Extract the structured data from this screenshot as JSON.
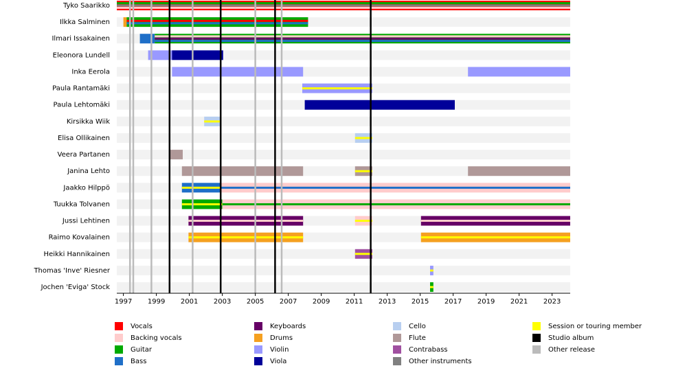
{
  "chart_data": {
    "type": "timeline",
    "xlim": [
      1996.6,
      2024.1
    ],
    "xticks": [
      1997,
      1999,
      2001,
      2003,
      2005,
      2007,
      2009,
      2011,
      2013,
      2015,
      2017,
      2019,
      2021,
      2023
    ],
    "legend": [
      {
        "name": "Vocals",
        "color": "#ff0000"
      },
      {
        "name": "Backing vocals",
        "color": "#ffcccc"
      },
      {
        "name": "Guitar",
        "color": "#00aa00"
      },
      {
        "name": "Bass",
        "color": "#1f6fc8"
      },
      {
        "name": "Keyboards",
        "color": "#660066"
      },
      {
        "name": "Drums",
        "color": "#f5a020"
      },
      {
        "name": "Violin",
        "color": "#9999ff"
      },
      {
        "name": "Viola",
        "color": "#000099"
      },
      {
        "name": "Cello",
        "color": "#b8cff0"
      },
      {
        "name": "Flute",
        "color": "#b09898"
      },
      {
        "name": "Contrabass",
        "color": "#a050a0"
      },
      {
        "name": "Other instruments",
        "color": "#808080"
      },
      {
        "name": "Session or touring member",
        "color": "#ffff00"
      },
      {
        "name": "Studio album",
        "color": "#000000"
      },
      {
        "name": "Other release",
        "color": "#bbbbbb"
      }
    ],
    "studio_albums": [
      1999.8,
      2002.9,
      2006.2,
      2012.0
    ],
    "other_releases": [
      1997.4,
      1997.6,
      1998.7,
      2001.2,
      2005.0,
      2006.6
    ],
    "members": [
      {
        "name": "Tyko Saarikko",
        "segments": [
          {
            "start": 1996.6,
            "end": 2024.1,
            "roles": [
              "Vocals",
              "Guitar",
              "Other instruments",
              "Backing vocals"
            ]
          }
        ]
      },
      {
        "name": "Ilkka Salminen",
        "segments": [
          {
            "start": 1997.0,
            "end": 1997.2,
            "roles": [
              "Drums"
            ]
          },
          {
            "start": 1997.2,
            "end": 2008.2,
            "roles": [
              "Guitar",
              "Vocals",
              "Bass"
            ]
          }
        ]
      },
      {
        "name": "Ilmari Issakainen",
        "segments": [
          {
            "start": 1998.0,
            "end": 1998.9,
            "roles": [
              "Bass"
            ]
          },
          {
            "start": 1998.9,
            "end": 2024.1,
            "roles": [
              "Guitar",
              "Backing vocals",
              "Keyboards",
              "Bass"
            ]
          }
        ]
      },
      {
        "name": "Eleonora Lundell",
        "segments": [
          {
            "start": 1998.5,
            "end": 1999.95,
            "roles": [
              "Violin"
            ]
          },
          {
            "start": 1999.95,
            "end": 2003.05,
            "roles": [
              "Viola"
            ]
          }
        ]
      },
      {
        "name": "Inka Eerola",
        "segments": [
          {
            "start": 1999.95,
            "end": 2007.9,
            "roles": [
              "Violin"
            ]
          },
          {
            "start": 2017.9,
            "end": 2024.1,
            "roles": [
              "Violin"
            ]
          }
        ]
      },
      {
        "name": "Paula Rantamäki",
        "segments": [
          {
            "start": 2007.85,
            "end": 2012.1,
            "roles": [
              "Violin",
              "Session or touring member"
            ]
          }
        ]
      },
      {
        "name": "Paula Lehtomäki",
        "segments": [
          {
            "start": 2008.0,
            "end": 2017.1,
            "roles": [
              "Viola"
            ]
          }
        ]
      },
      {
        "name": "Kirsikka Wiik",
        "segments": [
          {
            "start": 2001.9,
            "end": 2002.9,
            "roles": [
              "Cello",
              "Session or touring member"
            ]
          }
        ]
      },
      {
        "name": "Elisa Ollikainen",
        "segments": [
          {
            "start": 2011.05,
            "end": 2012.1,
            "roles": [
              "Cello",
              "Session or touring member"
            ]
          }
        ]
      },
      {
        "name": "Veera Partanen",
        "segments": [
          {
            "start": 1999.8,
            "end": 2000.6,
            "roles": [
              "Flute"
            ]
          }
        ]
      },
      {
        "name": "Janina Lehto",
        "segments": [
          {
            "start": 2000.55,
            "end": 2007.9,
            "roles": [
              "Flute"
            ]
          },
          {
            "start": 2011.05,
            "end": 2012.1,
            "roles": [
              "Flute",
              "Session or touring member"
            ]
          },
          {
            "start": 2017.9,
            "end": 2024.1,
            "roles": [
              "Flute"
            ]
          }
        ]
      },
      {
        "name": "Jaakko Hilppö",
        "segments": [
          {
            "start": 2000.55,
            "end": 2002.9,
            "roles": [
              "Bass",
              "Session or touring member"
            ]
          },
          {
            "start": 2002.9,
            "end": 2024.1,
            "roles": [
              "Backing vocals",
              "Bass"
            ]
          }
        ]
      },
      {
        "name": "Tuukka Tolvanen",
        "segments": [
          {
            "start": 2000.55,
            "end": 2003.0,
            "roles": [
              "Guitar",
              "Session or touring member"
            ]
          },
          {
            "start": 2003.0,
            "end": 2024.1,
            "roles": [
              "Backing vocals",
              "Guitar"
            ]
          }
        ]
      },
      {
        "name": "Jussi Lehtinen",
        "segments": [
          {
            "start": 2000.95,
            "end": 2007.9,
            "roles": [
              "Keyboards",
              "Backing vocals"
            ]
          },
          {
            "start": 2011.05,
            "end": 2012.1,
            "roles": [
              "Backing vocals",
              "Session or touring member"
            ]
          },
          {
            "start": 2015.05,
            "end": 2024.1,
            "roles": [
              "Keyboards",
              "Backing vocals"
            ]
          }
        ]
      },
      {
        "name": "Raimo Kovalainen",
        "segments": [
          {
            "start": 2000.95,
            "end": 2007.9,
            "roles": [
              "Drums",
              "Session or touring member"
            ]
          },
          {
            "start": 2015.05,
            "end": 2024.1,
            "roles": [
              "Drums",
              "Session or touring member"
            ]
          }
        ]
      },
      {
        "name": "Heikki Hannikainen",
        "segments": [
          {
            "start": 2011.05,
            "end": 2012.1,
            "roles": [
              "Contrabass",
              "Session or touring member"
            ]
          }
        ]
      },
      {
        "name": "Thomas 'Inve' Riesner",
        "segments": [
          {
            "start": 2015.6,
            "end": 2015.8,
            "roles": [
              "Violin",
              "Session or touring member"
            ]
          }
        ]
      },
      {
        "name": "Jochen 'Eviga' Stock",
        "segments": [
          {
            "start": 2015.6,
            "end": 2015.8,
            "roles": [
              "Guitar",
              "Session or touring member"
            ]
          }
        ]
      }
    ]
  }
}
